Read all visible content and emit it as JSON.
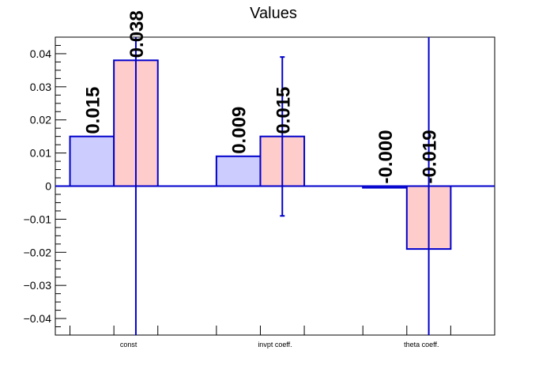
{
  "chart_data": {
    "type": "bar",
    "title": "Values",
    "categories": [
      "const",
      "invpt coeff.",
      "theta coeff."
    ],
    "series": [
      {
        "values": [
          0.015,
          0.009,
          -0.0005
        ],
        "labels": [
          "0.015",
          "0.009",
          "-0.000"
        ],
        "errors": [
          null,
          null,
          null
        ],
        "fill": "#ccccff",
        "stroke": "#0000cc"
      },
      {
        "values": [
          0.038,
          0.015,
          -0.019
        ],
        "labels": [
          "0.038",
          "0.015",
          "-0.019"
        ],
        "errors": [
          0.3,
          0.024,
          0.3
        ],
        "fill": "#ffcccc",
        "stroke": "#0000cc"
      }
    ],
    "ylim": [
      -0.045,
      0.045
    ],
    "yticks": [
      0.04,
      0.03,
      0.02,
      0.01,
      0,
      -0.01,
      -0.02,
      -0.03,
      -0.04
    ],
    "ytick_labels": [
      "0.04",
      "0.03",
      "0.02",
      "0.01",
      "0",
      "−0.01",
      "−0.02",
      "−0.03",
      "−0.04"
    ],
    "grid": false,
    "legend": "none",
    "axis_color": "#000000",
    "zero_line_color": "#0000cc",
    "error_bar_color": "#0000cc"
  }
}
